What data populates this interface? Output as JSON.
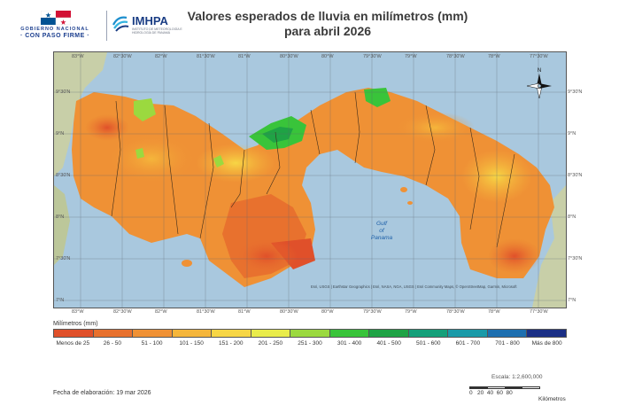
{
  "header": {
    "gov_logo_line1": "GOBIERNO NACIONAL",
    "gov_logo_line2": "· CON PASO FIRME ·",
    "imhpa_name": "IMHPA",
    "imhpa_sub": "INSTITUTO DE METEOROLOGÍA E HIDROLOGÍA DE PANAMÁ",
    "title_line1": "Valores esperados de lluvia en milímetros (mm)",
    "title_line2": "para abril 2026"
  },
  "map": {
    "sea_label_line1": "Gulf",
    "sea_label_line2": "of",
    "sea_label_line3": "Panama",
    "attribution": "Esri, USGS | Earthstar Geographics | Esri, NASA, NGA, USGS | Esri Community Maps, © OpenStreetMap, Garmin, Microsoft",
    "north_label": "N",
    "top_ticks": [
      "83°W",
      "82°30'W",
      "82°W",
      "81°30'W",
      "81°W",
      "80°30'W",
      "80°W",
      "79°30'W",
      "79°W",
      "78°30'W",
      "78°W",
      "77°30'W"
    ],
    "bottom_ticks": [
      "83°W",
      "82°30'W",
      "82°W",
      "81°30'W",
      "81°W",
      "80°30'W",
      "80°W",
      "79°30'W",
      "79°W",
      "78°30'W",
      "78°W",
      "77°30'W"
    ],
    "left_ticks": [
      "9°30'N",
      "9°N",
      "8°30'N",
      "8°N",
      "7°30'N",
      "7°N"
    ],
    "right_ticks": [
      "9°30'N",
      "9°N",
      "8°30'N",
      "8°N",
      "7°30'N",
      "7°N"
    ],
    "colors": {
      "sea": "#a9c8de",
      "neighbor_land": "#c8cfa8"
    }
  },
  "legend": {
    "title": "Milímetros (mm)",
    "classes": [
      {
        "label": "Menos de 25",
        "color": "#e0502a"
      },
      {
        "label": "26 - 50",
        "color": "#e8712e"
      },
      {
        "label": "51 - 100",
        "color": "#ef9135"
      },
      {
        "label": "101 - 150",
        "color": "#f5b63b"
      },
      {
        "label": "151 - 200",
        "color": "#f7d645"
      },
      {
        "label": "201 - 250",
        "color": "#e9ec4b"
      },
      {
        "label": "251 - 300",
        "color": "#9bd93f"
      },
      {
        "label": "301 - 400",
        "color": "#39c43a"
      },
      {
        "label": "401 - 500",
        "color": "#1fa345"
      },
      {
        "label": "501 - 600",
        "color": "#15a07a"
      },
      {
        "label": "601 - 700",
        "color": "#1a9aa8"
      },
      {
        "label": "701 - 800",
        "color": "#1d6fb0"
      },
      {
        "label": "Más de 800",
        "color": "#1b2f86"
      }
    ]
  },
  "footer": {
    "scale_text": "Escala: 1:2,600,000",
    "fecha": "Fecha de elaboración: 19 mar 2026",
    "scale_numbers": "0   20  40  60  80",
    "scale_unit": "Kilómetros"
  }
}
